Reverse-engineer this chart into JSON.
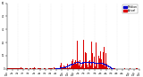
{
  "background_color": "#ffffff",
  "bar_color": "#dd0000",
  "median_color": "#0000cc",
  "n_points": 1440,
  "ylim": [
    0,
    50
  ],
  "yticks": [
    0,
    10,
    20,
    30,
    40,
    50
  ],
  "legend_labels": [
    "Median",
    "Actual"
  ],
  "legend_colors": [
    "#0000cc",
    "#dd0000"
  ],
  "seed": 12345
}
